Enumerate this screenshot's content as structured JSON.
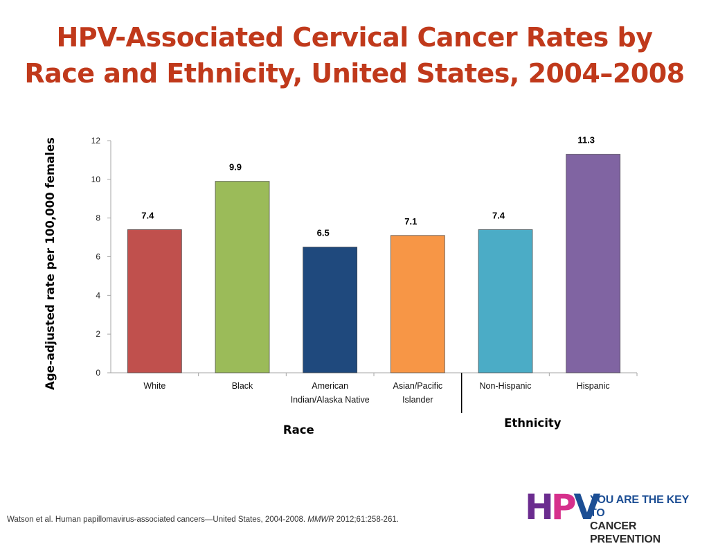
{
  "slide": {
    "title_lines": [
      "HPV-Associated Cervical Cancer Rates by",
      "Race and Ethnicity, United States, 2004–2008"
    ],
    "citation_prefix": "Watson et al. Human papillomavirus-associated cancers—United States, 2004-2008. ",
    "citation_journal": "MMWR",
    "citation_suffix": " 2012;61:258-261."
  },
  "logo": {
    "letters": [
      "H",
      "P",
      "V"
    ],
    "tagline_line1": "YOU ARE THE KEY TO",
    "tagline_line2": "CANCER PREVENTION",
    "colors": {
      "h": "#6b2c8f",
      "p": "#d6308c",
      "v": "#1c4e94"
    }
  },
  "chart_data": {
    "type": "bar",
    "title": "",
    "ylabel": "Age-adjusted rate per 100,000 females",
    "ylim": [
      0,
      12
    ],
    "yticks": [
      0,
      2,
      4,
      6,
      8,
      10,
      12
    ],
    "grid": false,
    "legend": "none",
    "categories": [
      [
        "White"
      ],
      [
        "Black"
      ],
      [
        "American",
        "Indian/Alaska Native"
      ],
      [
        "Asian/Pacific",
        "Islander"
      ],
      [
        "Non-Hispanic"
      ],
      [
        "Hispanic"
      ]
    ],
    "values": [
      7.4,
      9.9,
      6.5,
      7.1,
      7.4,
      11.3
    ],
    "data_labels": [
      "7.4",
      "9.9",
      "6.5",
      "7.1",
      "7.4",
      "11.3"
    ],
    "colors": [
      "#c0504d",
      "#9bbb59",
      "#1f497d",
      "#f79646",
      "#4bacc6",
      "#8064a2"
    ],
    "groups": [
      {
        "label": "Race",
        "categories": 4
      },
      {
        "label": "Ethnicity",
        "categories": 2
      }
    ]
  }
}
